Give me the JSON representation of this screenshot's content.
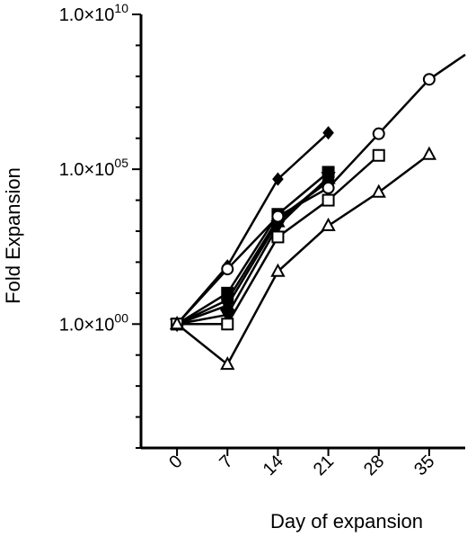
{
  "chart_data": {
    "type": "line",
    "xlabel": "Day of expansion",
    "ylabel": "Fold Expansion",
    "yscale": "log",
    "xlim": [
      -5,
      40
    ],
    "ylim": [
      0.0001,
      10000000000
    ],
    "x_ticks": [
      0,
      7,
      14,
      21,
      28,
      35
    ],
    "x_tick_labels": [
      "0",
      "7",
      "14",
      "21",
      "28",
      "35"
    ],
    "y_ticks": [
      1,
      100000,
      10000000000
    ],
    "y_tick_labels": [
      "1.0×10^00",
      "1.0×10^05",
      "1.0×10^10"
    ],
    "grid": false,
    "legend": "none",
    "series": [
      {
        "marker": "filled-diamond",
        "x": [
          0,
          7,
          14,
          21
        ],
        "y": [
          1,
          75,
          48000,
          1500000
        ]
      },
      {
        "marker": "filled-square",
        "x": [
          0,
          7,
          14,
          21
        ],
        "y": [
          1,
          10,
          3500,
          80000
        ]
      },
      {
        "marker": "filled-circle",
        "x": [
          0,
          7,
          14,
          21
        ],
        "y": [
          1,
          6,
          2500,
          40000
        ]
      },
      {
        "marker": "filled-triangle-up",
        "x": [
          0,
          7,
          14,
          21
        ],
        "y": [
          1,
          4,
          2000,
          50000
        ]
      },
      {
        "marker": "filled-triangle-down",
        "x": [
          0,
          7,
          14,
          21
        ],
        "y": [
          1,
          2,
          1500,
          55000
        ]
      },
      {
        "marker": "open-circle",
        "x": [
          0,
          7,
          14,
          21,
          28,
          35,
          40
        ],
        "y": [
          1,
          60,
          3000,
          25000,
          1400000,
          80000000,
          500000000
        ]
      },
      {
        "marker": "open-square",
        "x": [
          0,
          7,
          14,
          21,
          28
        ],
        "y": [
          1,
          1,
          650,
          10000,
          280000
        ]
      },
      {
        "marker": "open-triangle-up",
        "x": [
          0,
          7,
          14,
          21,
          28,
          35
        ],
        "y": [
          1,
          0.05,
          50,
          1500,
          18000,
          300000
        ]
      }
    ]
  }
}
